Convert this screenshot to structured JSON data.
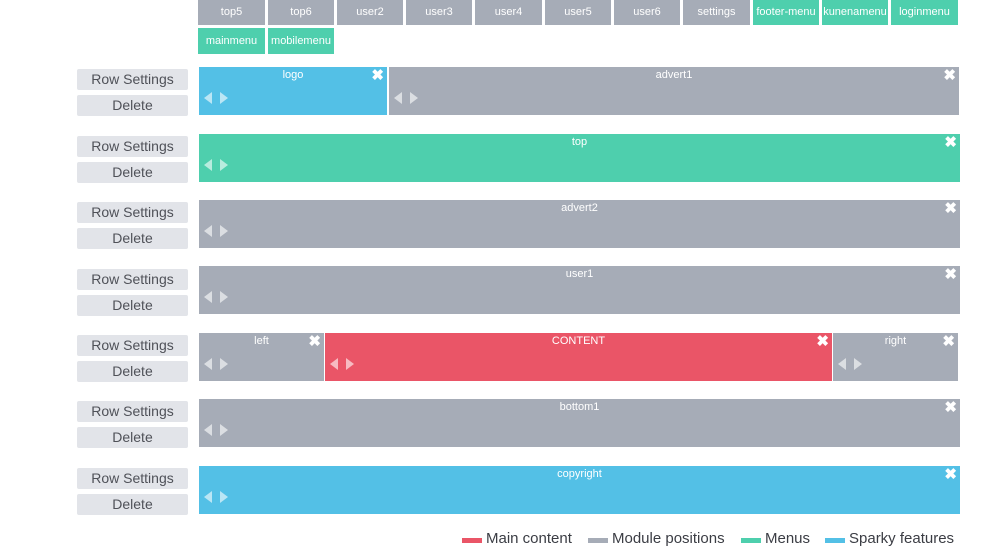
{
  "colors": {
    "main": "#ea5567",
    "module": "#a6acb7",
    "menu": "#4ecfad",
    "sparky": "#53c0e6"
  },
  "position_tags": [
    {
      "label": "top5",
      "kind": "module"
    },
    {
      "label": "top6",
      "kind": "module"
    },
    {
      "label": "user2",
      "kind": "module"
    },
    {
      "label": "user3",
      "kind": "module"
    },
    {
      "label": "user4",
      "kind": "module"
    },
    {
      "label": "user5",
      "kind": "module"
    },
    {
      "label": "user6",
      "kind": "module"
    },
    {
      "label": "settings",
      "kind": "module"
    },
    {
      "label": "footer-menu",
      "kind": "menu"
    },
    {
      "label": "kunenamenu",
      "kind": "menu"
    },
    {
      "label": "loginmenu",
      "kind": "menu"
    },
    {
      "label": "mainmenu",
      "kind": "menu"
    },
    {
      "label": "mobilemenu",
      "kind": "menu"
    }
  ],
  "row_controls": {
    "settings_label": "Row Settings",
    "delete_label": "Delete"
  },
  "rows": [
    {
      "blocks": [
        {
          "label": "logo",
          "kind": "sparky"
        },
        {
          "label": "advert1",
          "kind": "module"
        }
      ]
    },
    {
      "blocks": [
        {
          "label": "top",
          "kind": "menu"
        }
      ]
    },
    {
      "blocks": [
        {
          "label": "advert2",
          "kind": "module"
        }
      ]
    },
    {
      "blocks": [
        {
          "label": "user1",
          "kind": "module"
        }
      ]
    },
    {
      "blocks": [
        {
          "label": "left",
          "kind": "module"
        },
        {
          "label": "CONTENT",
          "kind": "main"
        },
        {
          "label": "right",
          "kind": "module"
        }
      ]
    },
    {
      "blocks": [
        {
          "label": "bottom1",
          "kind": "module"
        }
      ]
    },
    {
      "blocks": [
        {
          "label": "copyright",
          "kind": "sparky"
        }
      ]
    }
  ],
  "close_glyph": "✖",
  "legend": [
    {
      "label": "Main content",
      "kind": "main"
    },
    {
      "label": "Module positions",
      "kind": "module"
    },
    {
      "label": "Menus",
      "kind": "menu"
    },
    {
      "label": "Sparky features",
      "kind": "sparky"
    }
  ]
}
